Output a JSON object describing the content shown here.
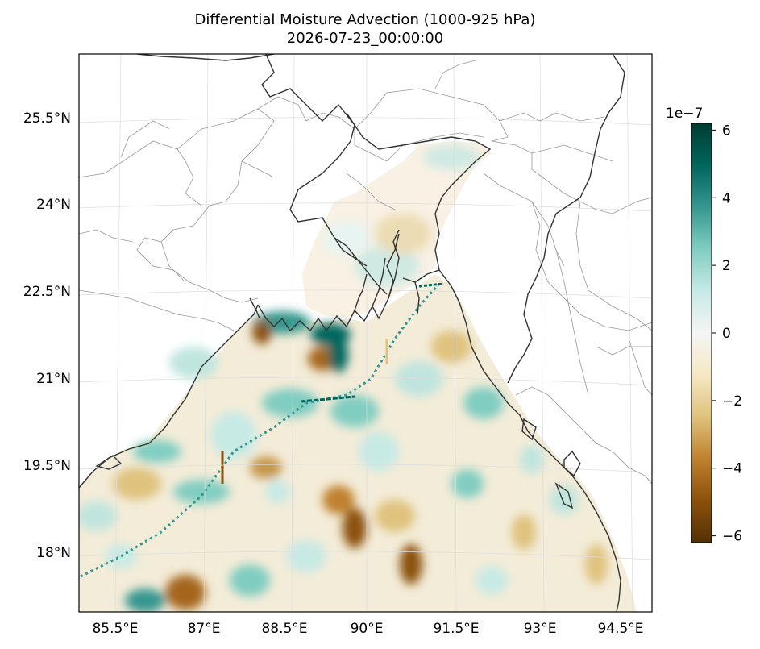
{
  "title": "Differential Moisture Advection (1000-925 hPa)",
  "subtitle": "2026-07-23_00:00:00",
  "lon_ticks": [
    "85.5°E",
    "87°E",
    "88.5°E",
    "90°E",
    "91.5°E",
    "93°E",
    "94.5°E"
  ],
  "lat_ticks": [
    "25.5°N",
    "24°N",
    "22.5°N",
    "21°N",
    "19.5°N",
    "18°N"
  ],
  "colorbar": {
    "exponent_label": "1e−7",
    "ticks": [
      "6",
      "4",
      "2",
      "0",
      "−2",
      "−4",
      "−6"
    ],
    "range": [
      -6.2,
      6.2
    ],
    "colormap": "BrBG",
    "colors": [
      "#543005",
      "#8c510a",
      "#bf812d",
      "#dfc27d",
      "#f6e8c3",
      "#f5f5f5",
      "#c7eae5",
      "#80cdc1",
      "#35978f",
      "#01665e",
      "#003c30"
    ]
  },
  "map_extent": {
    "lon_range": [
      84.2,
      95.0
    ],
    "lat_range": [
      16.8,
      26.3
    ]
  },
  "chart_data": {
    "type": "heatmap",
    "title": "Differential Moisture Advection (1000-925 hPa)",
    "subtitle": "2026-07-23_00:00:00",
    "x_ticks": [
      "85.5°E",
      "87°E",
      "88.5°E",
      "90°E",
      "91.5°E",
      "93°E",
      "94.5°E"
    ],
    "y_ticks": [
      "25.5°N",
      "24°N",
      "22.5°N",
      "21°N",
      "19.5°N",
      "18°N"
    ],
    "value_range": [
      -6.2,
      6.2
    ],
    "value_scale": "1e-7",
    "grid": true
  }
}
